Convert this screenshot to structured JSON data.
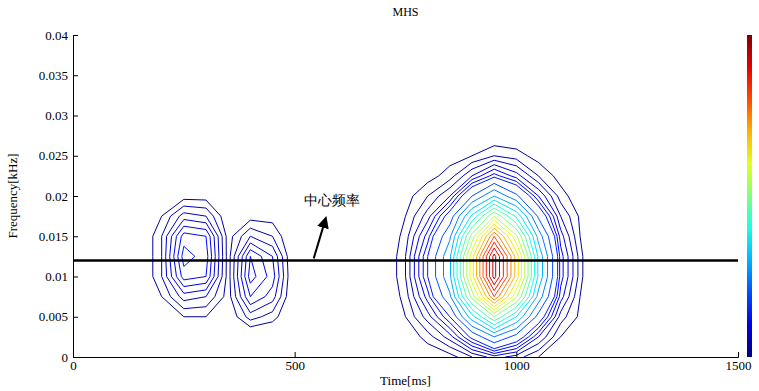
{
  "chart_data": {
    "type": "contour",
    "title": "MHS",
    "x_label": "Time[ms]",
    "y_label": "Frequency[kHz]",
    "xlim": [
      0,
      1500
    ],
    "ylim": [
      0,
      0.04
    ],
    "xticks": [
      0,
      500,
      1000,
      1500
    ],
    "yticks": [
      0,
      0.005,
      0.01,
      0.015,
      0.02,
      0.025,
      0.03,
      0.035,
      0.04
    ],
    "center_frequency": 0.012,
    "annotation": "中心频率",
    "colorbar": {
      "range": [
        0,
        1
      ]
    },
    "levels": [
      0.03,
      0.05,
      0.07,
      0.09,
      0.11,
      0.13,
      0.15,
      0.2,
      0.25,
      0.3,
      0.35,
      0.4,
      0.45,
      0.5,
      0.55,
      0.6,
      0.65,
      0.7,
      0.75,
      0.8,
      0.85,
      0.9,
      0.95
    ],
    "z_x": [
      0,
      50,
      100,
      150,
      200,
      250,
      300,
      350,
      400,
      450,
      500,
      550,
      600,
      650,
      700,
      750,
      800,
      850,
      900,
      950,
      1000,
      1050,
      1100,
      1150,
      1200,
      1250,
      1300,
      1350,
      1400,
      1450,
      1500
    ],
    "z_y": [
      0,
      0.0025,
      0.005,
      0.0075,
      0.01,
      0.0125,
      0.015,
      0.0175,
      0.02,
      0.0225,
      0.025,
      0.0275,
      0.03
    ],
    "z": [
      [
        0,
        0,
        0,
        0,
        0,
        0,
        0,
        0,
        0,
        0,
        0,
        0,
        0,
        0,
        0,
        0,
        0.01,
        0.02,
        0.05,
        0.08,
        0.06,
        0.03,
        0.01,
        0,
        0,
        0,
        0,
        0,
        0,
        0,
        0
      ],
      [
        0,
        0,
        0,
        0,
        0,
        0,
        0,
        0,
        0,
        0,
        0,
        0,
        0,
        0,
        0,
        0.01,
        0.04,
        0.08,
        0.16,
        0.25,
        0.18,
        0.09,
        0.03,
        0.01,
        0,
        0,
        0,
        0,
        0,
        0,
        0
      ],
      [
        0,
        0,
        0,
        0,
        0.01,
        0.03,
        0.03,
        0.01,
        0.06,
        0.04,
        0,
        0,
        0,
        0,
        0,
        0.03,
        0.08,
        0.15,
        0.33,
        0.5,
        0.35,
        0.18,
        0.06,
        0.02,
        0,
        0,
        0,
        0,
        0,
        0,
        0
      ],
      [
        0,
        0,
        0,
        0,
        0.03,
        0.08,
        0.07,
        0.02,
        0.11,
        0.08,
        0,
        0,
        0,
        0,
        0,
        0.04,
        0.12,
        0.24,
        0.52,
        0.8,
        0.56,
        0.28,
        0.1,
        0.02,
        0,
        0,
        0,
        0,
        0,
        0,
        0
      ],
      [
        0,
        0,
        0,
        0,
        0.05,
        0.14,
        0.13,
        0.02,
        0.14,
        0.1,
        0,
        0,
        0,
        0,
        0,
        0.05,
        0.15,
        0.29,
        0.63,
        0.97,
        0.68,
        0.34,
        0.12,
        0.03,
        0,
        0,
        0,
        0,
        0,
        0,
        0
      ],
      [
        0,
        0,
        0,
        0,
        0.05,
        0.16,
        0.14,
        0.02,
        0.13,
        0.09,
        0,
        0,
        0,
        0,
        0,
        0.05,
        0.15,
        0.29,
        0.63,
        0.97,
        0.68,
        0.34,
        0.12,
        0.03,
        0,
        0,
        0,
        0,
        0,
        0,
        0
      ],
      [
        0,
        0,
        0,
        0,
        0.05,
        0.14,
        0.13,
        0.02,
        0.07,
        0.05,
        0,
        0,
        0,
        0,
        0,
        0.04,
        0.12,
        0.24,
        0.52,
        0.8,
        0.56,
        0.28,
        0.1,
        0.02,
        0,
        0,
        0,
        0,
        0,
        0,
        0
      ],
      [
        0,
        0,
        0,
        0,
        0.03,
        0.08,
        0.07,
        0.01,
        0.02,
        0.02,
        0,
        0,
        0,
        0,
        0,
        0.03,
        0.08,
        0.17,
        0.36,
        0.55,
        0.39,
        0.19,
        0.07,
        0.02,
        0,
        0,
        0,
        0,
        0,
        0,
        0
      ],
      [
        0,
        0,
        0,
        0,
        0.01,
        0.02,
        0.02,
        0,
        0,
        0,
        0,
        0,
        0,
        0,
        0,
        0.02,
        0.05,
        0.09,
        0.2,
        0.3,
        0.21,
        0.11,
        0.04,
        0.01,
        0,
        0,
        0,
        0,
        0,
        0,
        0
      ],
      [
        0,
        0,
        0,
        0,
        0,
        0,
        0,
        0,
        0,
        0,
        0,
        0,
        0,
        0,
        0,
        0.01,
        0.02,
        0.04,
        0.09,
        0.14,
        0.1,
        0.05,
        0.02,
        0,
        0,
        0,
        0,
        0,
        0,
        0,
        0
      ],
      [
        0,
        0,
        0,
        0,
        0,
        0,
        0,
        0,
        0,
        0,
        0,
        0,
        0,
        0,
        0,
        0,
        0.01,
        0.02,
        0.03,
        0.05,
        0.04,
        0.02,
        0.01,
        0,
        0,
        0,
        0,
        0,
        0,
        0,
        0
      ],
      [
        0,
        0,
        0,
        0,
        0,
        0,
        0,
        0,
        0,
        0,
        0,
        0,
        0,
        0,
        0,
        0,
        0,
        0,
        0.01,
        0.01,
        0.01,
        0,
        0,
        0,
        0,
        0,
        0,
        0,
        0,
        0,
        0
      ],
      [
        0,
        0,
        0,
        0,
        0,
        0,
        0,
        0,
        0,
        0,
        0,
        0,
        0,
        0,
        0,
        0,
        0,
        0,
        0,
        0,
        0,
        0,
        0,
        0,
        0,
        0,
        0,
        0,
        0,
        0,
        0
      ]
    ]
  }
}
